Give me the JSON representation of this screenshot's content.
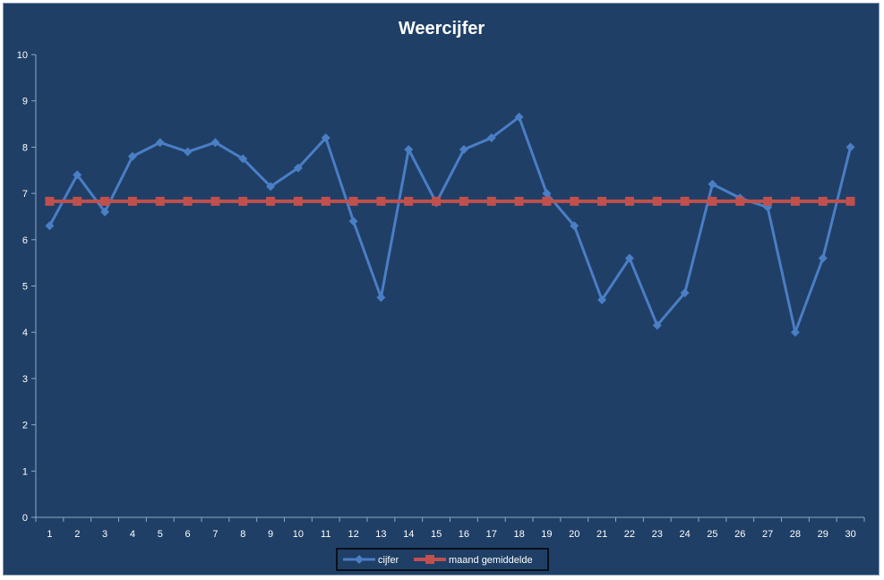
{
  "chart_data": {
    "type": "line",
    "title": "Weercijfer",
    "xlabel": "",
    "ylabel": "",
    "ylim": [
      0,
      10
    ],
    "yticks": [
      0,
      1,
      2,
      3,
      4,
      5,
      6,
      7,
      8,
      9,
      10
    ],
    "categories": [
      "1",
      "2",
      "3",
      "4",
      "5",
      "6",
      "7",
      "8",
      "9",
      "10",
      "11",
      "12",
      "13",
      "14",
      "15",
      "16",
      "17",
      "18",
      "19",
      "20",
      "21",
      "22",
      "23",
      "24",
      "25",
      "26",
      "27",
      "28",
      "29",
      "30"
    ],
    "series": [
      {
        "name": "cijfer",
        "color": "#4a7ec5",
        "marker": "diamond",
        "values": [
          6.3,
          7.4,
          6.6,
          7.8,
          8.1,
          7.9,
          8.1,
          7.75,
          7.15,
          7.55,
          8.2,
          6.4,
          4.75,
          7.95,
          6.8,
          7.95,
          8.2,
          8.65,
          7.0,
          6.3,
          4.7,
          5.6,
          4.15,
          4.85,
          7.2,
          6.9,
          6.7,
          4.0,
          5.6,
          8.0
        ]
      },
      {
        "name": "maand gemiddelde",
        "color": "#c0504d",
        "marker": "square",
        "values": [
          6.83,
          6.83,
          6.83,
          6.83,
          6.83,
          6.83,
          6.83,
          6.83,
          6.83,
          6.83,
          6.83,
          6.83,
          6.83,
          6.83,
          6.83,
          6.83,
          6.83,
          6.83,
          6.83,
          6.83,
          6.83,
          6.83,
          6.83,
          6.83,
          6.83,
          6.83,
          6.83,
          6.83,
          6.83,
          6.83
        ]
      }
    ],
    "grid": false,
    "legend_position": "bottom",
    "colors": {
      "background": "#1f3f66",
      "axis": "#8fa7c4",
      "text": "#ffffff"
    }
  }
}
